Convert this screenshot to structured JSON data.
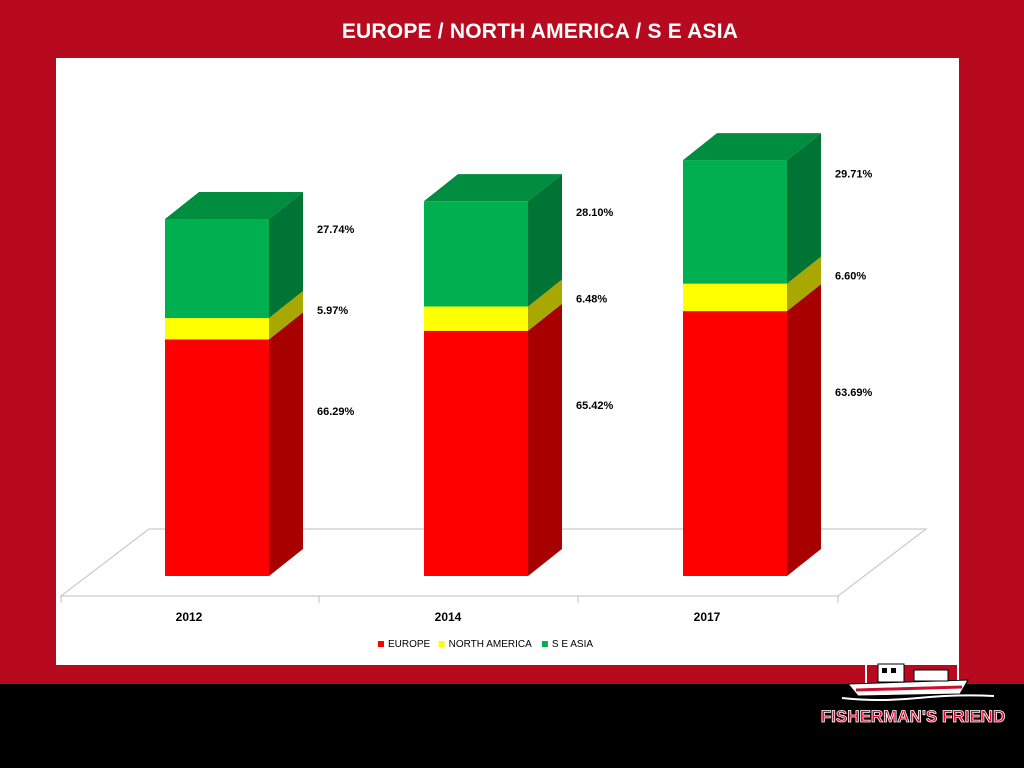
{
  "slide": {
    "title": "EUROPE / NORTH AMERICA / S E ASIA"
  },
  "brand": {
    "logo_text": "FISHERMAN'S FRIEND",
    "colors": {
      "background": "#b80a1e",
      "footer": "#000000",
      "panel": "#ffffff"
    }
  },
  "chart_data": {
    "type": "bar",
    "stacked": true,
    "three_d": true,
    "categories": [
      "2012",
      "2014",
      "2017"
    ],
    "series": [
      {
        "name": "EUROPE",
        "color": "#ff0000",
        "values": [
          66.29,
          65.42,
          63.69
        ],
        "labels": [
          "66.29%",
          "65.42%",
          "63.69%"
        ]
      },
      {
        "name": "NORTH AMERICA",
        "color": "#ffff00",
        "values": [
          5.97,
          6.48,
          6.6
        ],
        "labels": [
          "5.97%",
          "6.48%",
          "6.60%"
        ]
      },
      {
        "name": "S E ASIA",
        "color": "#00b050",
        "values": [
          27.74,
          28.1,
          29.71
        ],
        "labels": [
          "27.74%",
          "28.10%",
          "29.71%"
        ]
      }
    ],
    "column_totals": [
      100,
      100,
      100
    ],
    "relative_height": [
      1.0,
      1.05,
      1.165
    ],
    "legend_position": "bottom",
    "grid": false
  }
}
